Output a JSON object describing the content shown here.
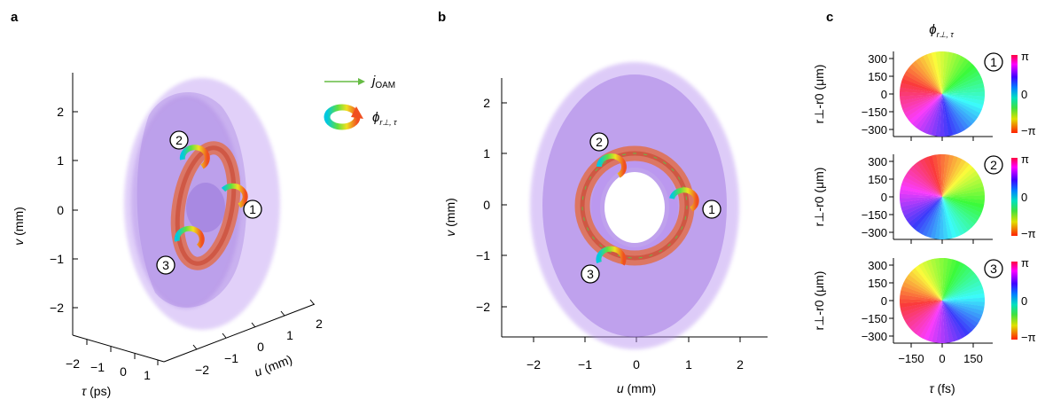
{
  "panels": {
    "a": {
      "letter": "a",
      "v_ticks": [
        "2",
        "1",
        "0",
        "−1",
        "−2"
      ],
      "v_label_var": "v",
      "v_label_unit": " (mm)",
      "u_ticks": [
        "−2",
        "−1",
        "0",
        "1",
        "2"
      ],
      "u_label_var": "u",
      "u_label_unit": " (mm)",
      "tau_ticks": [
        "−2",
        "−1",
        "0",
        "1"
      ],
      "tau_label_var": "τ",
      "tau_label_unit": " (ps)",
      "markers": [
        "2",
        "1",
        "3"
      ],
      "legend": {
        "j_label": "j",
        "j_sub": "OAM",
        "phi_label": "ϕ",
        "phi_sub": "r⊥, τ"
      }
    },
    "b": {
      "letter": "b",
      "v_ticks": [
        "2",
        "1",
        "0",
        "−1",
        "−2"
      ],
      "u_ticks": [
        "−2",
        "−1",
        "0",
        "1",
        "2"
      ],
      "v_label_var": "v",
      "v_label_unit": " (mm)",
      "u_label_var": "u",
      "u_label_unit": " (mm)",
      "markers": [
        "2",
        "1",
        "3"
      ]
    },
    "c": {
      "letter": "c",
      "title_var": "ϕ",
      "title_sub": "r⊥, τ",
      "y_ticks": [
        "300",
        "150",
        "0",
        "−150",
        "−300"
      ],
      "y_label": "r⊥-r0 (μm)",
      "x_ticks": [
        "−150",
        "0",
        "150"
      ],
      "x_label_var": "τ",
      "x_label_unit": " (fs)",
      "colorbar_ticks": [
        "π",
        "0",
        "−π"
      ],
      "subplots": [
        {
          "marker": "1"
        },
        {
          "marker": "2"
        },
        {
          "marker": "3"
        }
      ]
    }
  },
  "colors": {
    "smoke": "#9b6fe0",
    "ring": "#d9543a",
    "arrow": "#66bb44"
  }
}
